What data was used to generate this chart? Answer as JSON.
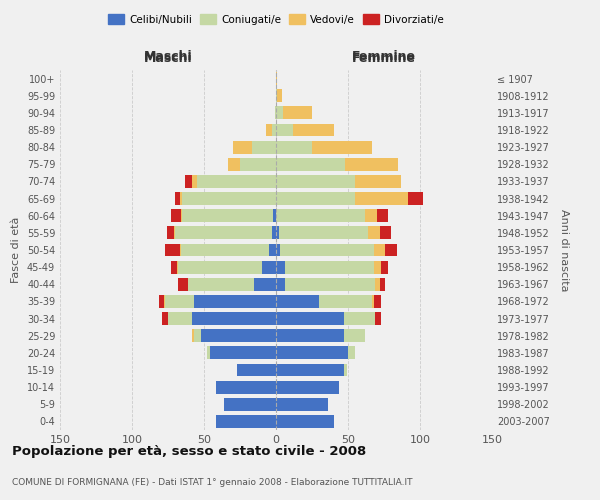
{
  "age_groups": [
    "100+",
    "95-99",
    "90-94",
    "85-89",
    "80-84",
    "75-79",
    "70-74",
    "65-69",
    "60-64",
    "55-59",
    "50-54",
    "45-49",
    "40-44",
    "35-39",
    "30-34",
    "25-29",
    "20-24",
    "15-19",
    "10-14",
    "5-9",
    "0-4"
  ],
  "birth_years": [
    "≤ 1907",
    "1908-1912",
    "1913-1917",
    "1918-1922",
    "1923-1927",
    "1928-1932",
    "1933-1937",
    "1938-1942",
    "1943-1947",
    "1948-1952",
    "1953-1957",
    "1958-1962",
    "1963-1967",
    "1968-1972",
    "1973-1977",
    "1978-1982",
    "1983-1987",
    "1988-1992",
    "1993-1997",
    "1998-2002",
    "2003-2007"
  ],
  "maschi": {
    "celibi": [
      0,
      0,
      0,
      0,
      0,
      0,
      0,
      0,
      2,
      3,
      5,
      10,
      15,
      57,
      58,
      52,
      46,
      27,
      42,
      36,
      42
    ],
    "coniugati": [
      0,
      0,
      1,
      3,
      17,
      25,
      55,
      65,
      63,
      67,
      61,
      58,
      46,
      20,
      17,
      5,
      2,
      0,
      0,
      0,
      0
    ],
    "vedovi": [
      0,
      0,
      0,
      4,
      13,
      8,
      3,
      2,
      1,
      1,
      1,
      1,
      0,
      1,
      0,
      1,
      0,
      0,
      0,
      0,
      0
    ],
    "divorziati": [
      0,
      0,
      0,
      0,
      0,
      0,
      5,
      3,
      7,
      5,
      10,
      4,
      7,
      3,
      4,
      0,
      0,
      0,
      0,
      0,
      0
    ]
  },
  "femmine": {
    "nubili": [
      0,
      0,
      0,
      0,
      0,
      0,
      0,
      0,
      0,
      2,
      3,
      6,
      6,
      30,
      47,
      47,
      50,
      47,
      44,
      36,
      40
    ],
    "coniugate": [
      0,
      1,
      5,
      12,
      25,
      48,
      55,
      55,
      62,
      62,
      65,
      62,
      63,
      37,
      22,
      15,
      5,
      2,
      0,
      0,
      0
    ],
    "vedove": [
      1,
      3,
      20,
      28,
      42,
      37,
      32,
      37,
      8,
      8,
      8,
      5,
      3,
      1,
      0,
      0,
      0,
      0,
      0,
      0,
      0
    ],
    "divorziate": [
      0,
      0,
      0,
      0,
      0,
      0,
      0,
      10,
      8,
      8,
      8,
      5,
      4,
      5,
      4,
      0,
      0,
      0,
      0,
      0,
      0
    ]
  },
  "colors": {
    "celibi_nubili": "#4472C4",
    "coniugati": "#C5D8A4",
    "vedovi": "#F0C060",
    "divorziati": "#CC2222"
  },
  "title": "Popolazione per età, sesso e stato civile - 2008",
  "subtitle": "COMUNE DI FORMIGNANA (FE) - Dati ISTAT 1° gennaio 2008 - Elaborazione TUTTITALIA.IT",
  "xlabel_left": "Maschi",
  "xlabel_right": "Femmine",
  "ylabel_left": "Fasce di età",
  "ylabel_right": "Anni di nascita",
  "xlim": 150,
  "legend_labels": [
    "Celibi/Nubili",
    "Coniugati/e",
    "Vedovi/e",
    "Divorziati/e"
  ],
  "background_color": "#f0f0f0",
  "bar_height": 0.75
}
